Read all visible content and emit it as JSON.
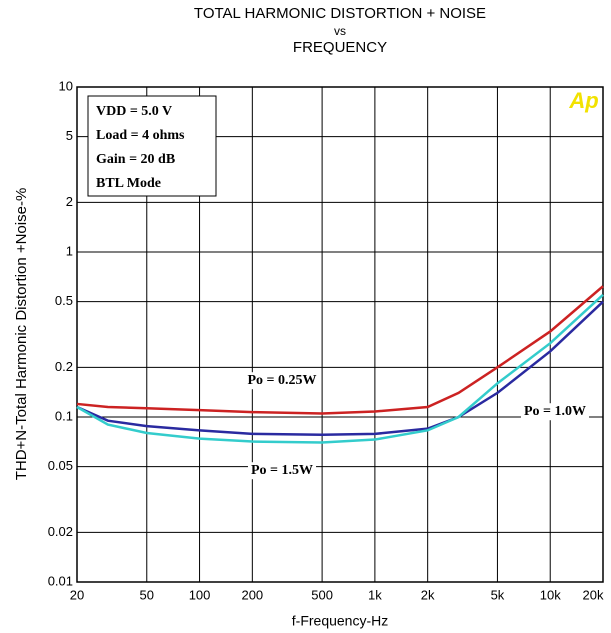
{
  "chart_data": {
    "type": "line",
    "title": [
      "TOTAL HARMONIC DISTORTION + NOISE",
      "vs",
      "FREQUENCY"
    ],
    "xlabel": "f-Frequency-Hz",
    "ylabel": "THD+N-Total Harmonic Distortion +Noise-%",
    "annotations": [
      "VDD = 5.0 V",
      "Load = 4 ohms",
      "Gain = 20 dB",
      "BTL Mode"
    ],
    "logo": "Ap",
    "xscale": "log",
    "yscale": "log",
    "grid": true,
    "xlim": [
      20,
      20000
    ],
    "ylim": [
      0.01,
      10
    ],
    "xticks": [
      20,
      50,
      100,
      200,
      500,
      {
        "value": 1000,
        "label": "1k"
      },
      {
        "value": 2000,
        "label": "2k"
      },
      {
        "value": 5000,
        "label": "5k"
      },
      {
        "value": 10000,
        "label": "10k"
      },
      {
        "value": 20000,
        "label": "20k"
      }
    ],
    "yticks": [
      0.01,
      0.02,
      0.05,
      0.1,
      0.2,
      0.5,
      1,
      2,
      5,
      10
    ],
    "x": [
      20,
      30,
      50,
      100,
      200,
      500,
      1000,
      2000,
      3000,
      5000,
      10000,
      20000
    ],
    "series": [
      {
        "name": "Po = 0.25W",
        "color": "#cc2222",
        "values": [
          0.12,
          0.115,
          0.113,
          0.11,
          0.107,
          0.105,
          0.108,
          0.115,
          0.14,
          0.2,
          0.33,
          0.62
        ]
      },
      {
        "name": "Po = 1.0W",
        "color": "#2a2aa0",
        "values": [
          0.115,
          0.095,
          0.088,
          0.083,
          0.079,
          0.078,
          0.079,
          0.085,
          0.1,
          0.14,
          0.25,
          0.5
        ]
      },
      {
        "name": "Po = 1.5W",
        "color": "#33cccc",
        "values": [
          0.115,
          0.09,
          0.08,
          0.074,
          0.071,
          0.07,
          0.073,
          0.083,
          0.1,
          0.16,
          0.28,
          0.55
        ]
      }
    ]
  }
}
